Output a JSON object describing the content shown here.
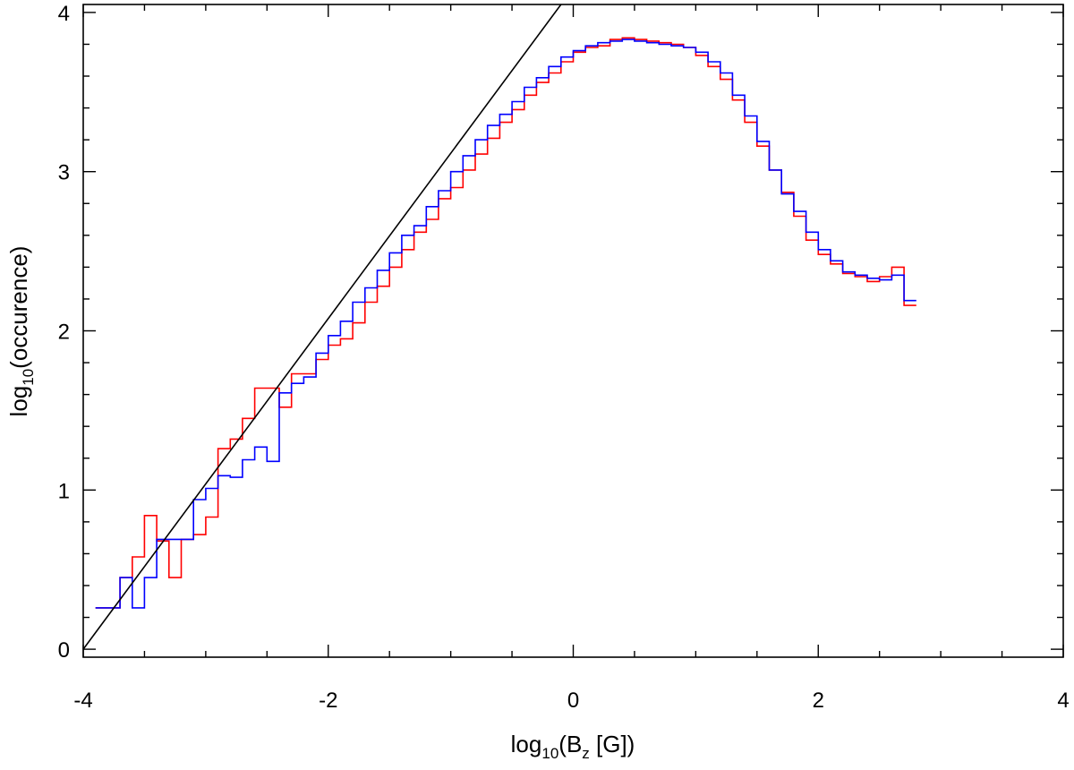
{
  "chart_data": {
    "type": "line",
    "title": "",
    "xlabel": {
      "base": "log",
      "sub": "10",
      "pre": "(B",
      "sub2": "z",
      "post": " [G])"
    },
    "ylabel": {
      "base": "log",
      "sub": "10",
      "post": "(occurence)"
    },
    "xlim": [
      -4,
      4
    ],
    "ylim": [
      -0.05,
      4.05
    ],
    "x_major_ticks": [
      -4,
      -2,
      0,
      2,
      4
    ],
    "x_tick_labels": [
      "-4",
      "-2",
      "0",
      "2",
      "4"
    ],
    "x_minor_step": 0.5,
    "y_major_ticks": [
      0,
      1,
      2,
      3,
      4
    ],
    "y_tick_labels": [
      "0",
      "1",
      "2",
      "3",
      "4"
    ],
    "y_minor_step": 0.2,
    "grid": false,
    "bin_width": 0.1,
    "series": [
      {
        "color": "#ff0000",
        "style": "step",
        "x_start": -3.9,
        "values": [
          0.26,
          0.26,
          0.45,
          0.58,
          0.84,
          0.68,
          0.45,
          0.69,
          0.72,
          0.83,
          1.26,
          1.32,
          1.45,
          1.64,
          1.64,
          1.52,
          1.73,
          1.73,
          1.82,
          1.91,
          1.95,
          2.05,
          2.18,
          2.28,
          2.4,
          2.51,
          2.62,
          2.7,
          2.83,
          2.9,
          3.01,
          3.11,
          3.21,
          3.31,
          3.39,
          3.48,
          3.56,
          3.62,
          3.69,
          3.75,
          3.78,
          3.79,
          3.83,
          3.84,
          3.83,
          3.82,
          3.81,
          3.8,
          3.78,
          3.73,
          3.66,
          3.58,
          3.45,
          3.31,
          3.16,
          3.01,
          2.87,
          2.72,
          2.57,
          2.48,
          2.42,
          2.36,
          2.34,
          2.31,
          2.34,
          2.4,
          2.16
        ]
      },
      {
        "color": "#0000ff",
        "style": "step",
        "x_start": -3.9,
        "values": [
          0.26,
          0.26,
          0.45,
          0.26,
          0.45,
          0.69,
          0.69,
          0.69,
          0.94,
          1.01,
          1.09,
          1.08,
          1.19,
          1.27,
          1.18,
          1.61,
          1.67,
          1.71,
          1.86,
          1.97,
          2.06,
          2.18,
          2.27,
          2.38,
          2.49,
          2.6,
          2.66,
          2.78,
          2.88,
          3.0,
          3.1,
          3.2,
          3.29,
          3.36,
          3.44,
          3.53,
          3.59,
          3.66,
          3.72,
          3.76,
          3.79,
          3.81,
          3.82,
          3.83,
          3.82,
          3.81,
          3.8,
          3.79,
          3.78,
          3.75,
          3.69,
          3.62,
          3.48,
          3.35,
          3.19,
          3.01,
          2.86,
          2.75,
          2.62,
          2.51,
          2.44,
          2.37,
          2.35,
          2.33,
          2.32,
          2.35,
          2.19
        ]
      },
      {
        "color": "#000000",
        "style": "line",
        "x": [
          -4.0,
          -0.1
        ],
        "y": [
          0.0,
          4.05
        ]
      }
    ]
  }
}
